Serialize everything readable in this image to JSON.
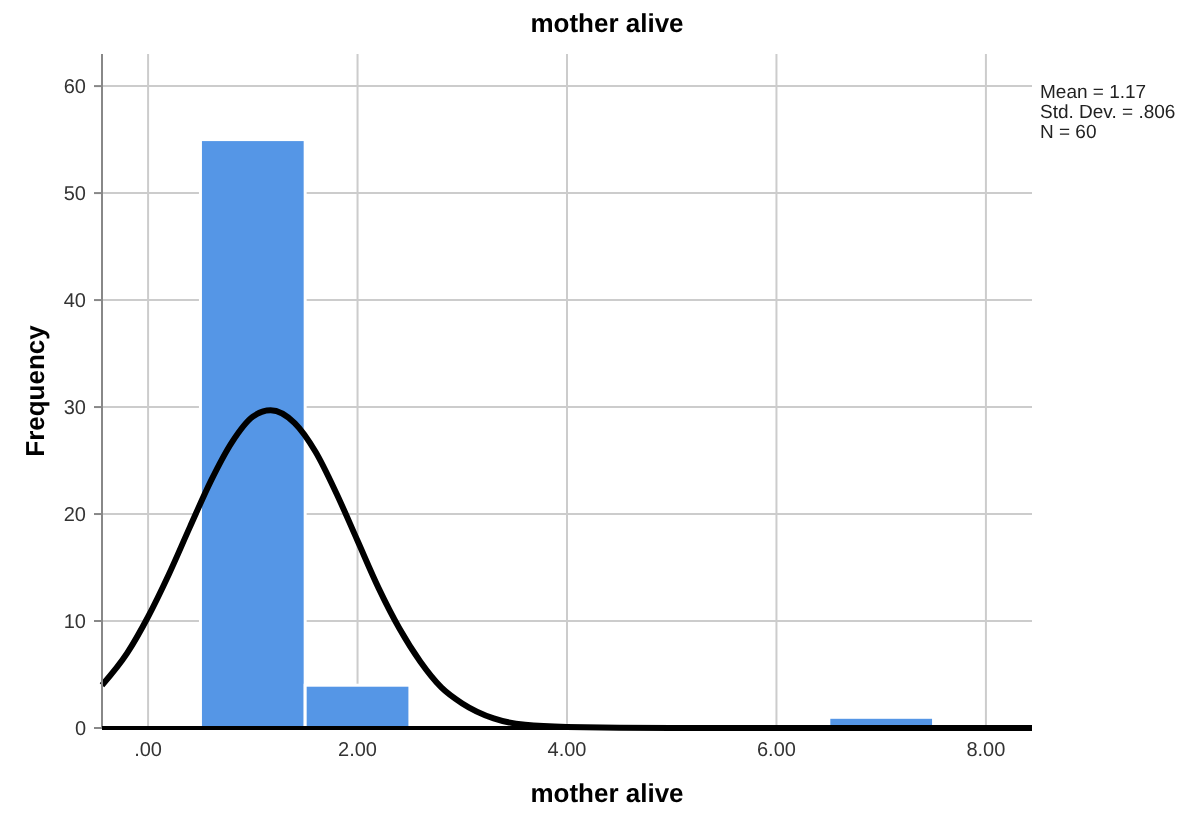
{
  "chart_data": {
    "type": "histogram",
    "title": "mother alive",
    "xlabel": "mother alive",
    "ylabel": "Frequency",
    "bins": [
      0.5,
      1.5,
      2.5,
      3.5,
      4.5,
      5.5,
      6.5,
      7.5
    ],
    "values": [
      55,
      4,
      0,
      0,
      0,
      0,
      1
    ],
    "color": "#5596e6",
    "series": [
      {
        "type": "line",
        "color": "#000000",
        "x": [
          -0.44,
          -0.2,
          0,
          0.2,
          0.4,
          0.6,
          0.8,
          1.0,
          1.17,
          1.4,
          1.6,
          1.8,
          2.0,
          2.2,
          2.4,
          2.6,
          2.8,
          3.0,
          3.3,
          3.6,
          4.0,
          5.0,
          6.0,
          7.0,
          8.0,
          8.44
        ],
        "values": [
          4.0,
          7.0,
          10.4,
          14.4,
          18.8,
          23.1,
          26.7,
          29.1,
          29.7,
          28.5,
          25.8,
          21.9,
          17.5,
          13.1,
          9.3,
          6.2,
          3.8,
          2.3,
          0.9,
          0.3,
          0.1,
          0,
          0,
          0,
          0,
          0
        ]
      }
    ],
    "xlim": [
      -0.44,
      8.44
    ],
    "ylim": [
      0,
      63
    ],
    "xticks": [
      {
        "value": 0,
        "label": ".00"
      },
      {
        "value": 2,
        "label": "2.00"
      },
      {
        "value": 4,
        "label": "4.00"
      },
      {
        "value": 6,
        "label": "6.00"
      },
      {
        "value": 8,
        "label": "8.00"
      }
    ],
    "yticks": [
      0,
      10,
      20,
      30,
      40,
      50,
      60
    ],
    "grid": true,
    "annotations": [
      "Mean = 1.17",
      "Std. Dev. = .806",
      "N = 60"
    ]
  }
}
